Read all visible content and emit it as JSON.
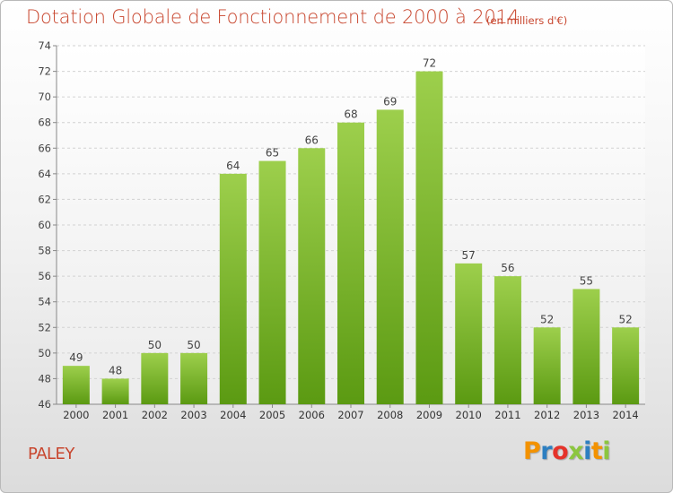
{
  "chart_data": {
    "type": "bar",
    "title": "Dotation Globale de Fonctionnement de 2000 à 2014",
    "subtitle": "(en milliers d'€)",
    "categories": [
      "2000",
      "2001",
      "2002",
      "2003",
      "2004",
      "2005",
      "2006",
      "2007",
      "2008",
      "2009",
      "2010",
      "2011",
      "2012",
      "2013",
      "2014"
    ],
    "values": [
      49,
      48,
      50,
      50,
      64,
      65,
      66,
      68,
      69,
      72,
      57,
      56,
      52,
      55,
      52
    ],
    "ylim": [
      46,
      74
    ],
    "yticks": [
      46,
      48,
      50,
      52,
      54,
      56,
      58,
      60,
      62,
      64,
      66,
      68,
      70,
      72,
      74
    ],
    "xlabel": "",
    "ylabel": "",
    "grid": true,
    "bar_color_top": "#9dcf4c",
    "bar_color_bottom": "#5b9a12"
  },
  "footer": {
    "commune": "PALEY",
    "logo": "Proxiti"
  },
  "colors": {
    "title": "#c8462e",
    "logo_letters": [
      "#f39200",
      "#2d7fc1",
      "#e5332a",
      "#8cc63f",
      "#2d7fc1",
      "#f39200",
      "#8cc63f"
    ]
  }
}
